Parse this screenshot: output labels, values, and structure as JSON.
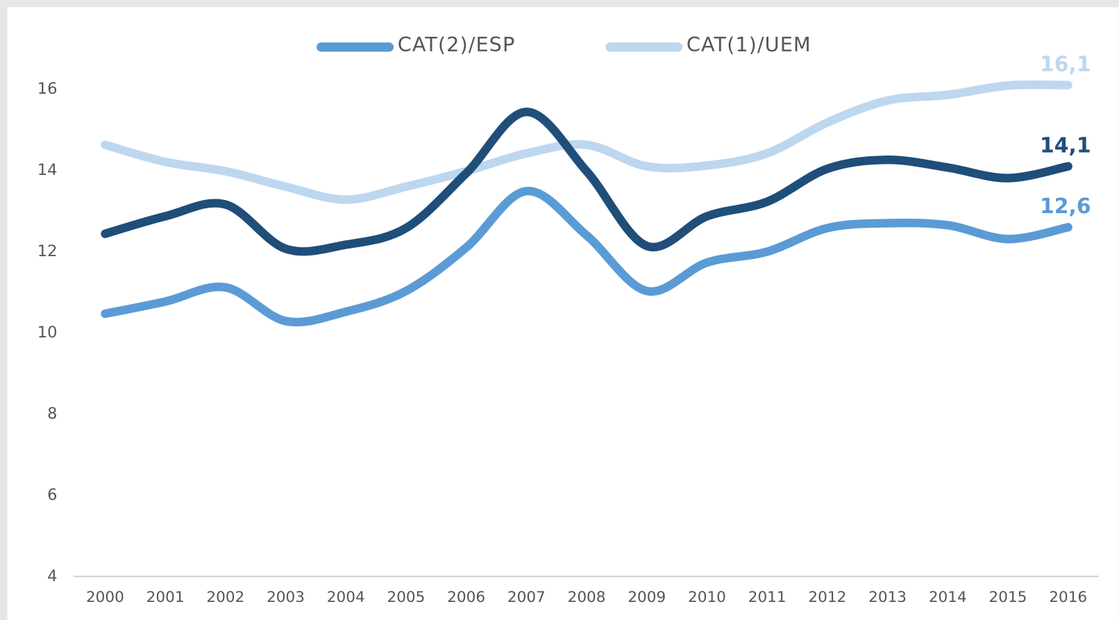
{
  "chart_data": {
    "type": "line",
    "categories": [
      "2000",
      "2001",
      "2002",
      "2003",
      "2004",
      "2005",
      "2006",
      "2007",
      "2008",
      "2009",
      "2010",
      "2011",
      "2012",
      "2013",
      "2014",
      "2015",
      "2016"
    ],
    "series": [
      {
        "color": "#1f4e79",
        "values": [
          12.44,
          12.87,
          13.16,
          12.07,
          12.17,
          12.58,
          13.93,
          15.44,
          13.98,
          12.14,
          12.87,
          13.23,
          14.04,
          14.26,
          14.07,
          13.81,
          14.1
        ],
        "value_labels": [
          null,
          null,
          null,
          null,
          null,
          null,
          null,
          null,
          null,
          null,
          null,
          null,
          null,
          null,
          null,
          null,
          "14,1"
        ]
      },
      {
        "name": "CAT(2)/ESP",
        "color": "#5b9bd5",
        "values": [
          10.47,
          10.77,
          11.12,
          10.29,
          10.52,
          11.03,
          12.1,
          13.49,
          12.4,
          11.03,
          11.73,
          12.0,
          12.58,
          12.7,
          12.65,
          12.31,
          12.6
        ],
        "value_labels": [
          null,
          null,
          null,
          null,
          null,
          null,
          null,
          null,
          null,
          null,
          null,
          null,
          null,
          null,
          null,
          null,
          "12,6"
        ]
      },
      {
        "name": "CAT(1)/UEM",
        "color": "#bdd7ee",
        "values": [
          14.63,
          14.21,
          13.98,
          13.6,
          13.28,
          13.6,
          13.98,
          14.42,
          14.63,
          14.1,
          14.12,
          14.42,
          15.18,
          15.72,
          15.86,
          16.09,
          16.1
        ],
        "value_labels": [
          null,
          null,
          null,
          null,
          null,
          null,
          null,
          null,
          null,
          null,
          null,
          null,
          null,
          null,
          null,
          null,
          "16,1"
        ]
      }
    ],
    "ylim": [
      4,
      16
    ],
    "yticks": [
      4,
      6,
      8,
      10,
      12,
      14,
      16
    ]
  }
}
